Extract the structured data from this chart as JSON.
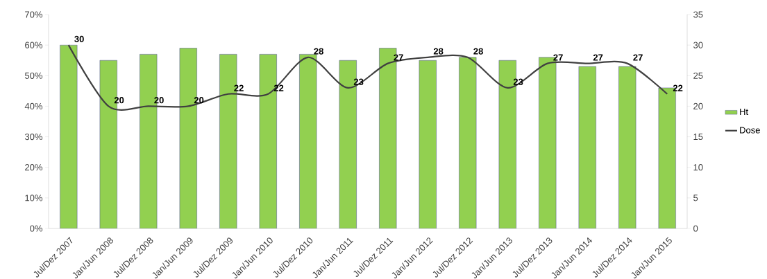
{
  "chart_data": {
    "type": "bar",
    "categories": [
      "Jul/Dez 2007",
      "Jan/Jun 2008",
      "Jul/Dez 2008",
      "Jan/Jun 2009",
      "Jul/Dez 2009",
      "Jan/Jun 2010",
      "Jul/Dez 2010",
      "Jan/Jun 2011",
      "Jul/Dez 2011",
      "Jan/Jun 2012",
      "Jul/Dez 2012",
      "Jan/Jun 2013",
      "Jul/Dez 2013",
      "Jan/Jun 2014",
      "Jul/Dez 2014",
      "Jan/Jun 2015"
    ],
    "series": [
      {
        "name": "Ht",
        "color": "#92d050",
        "values": [
          60,
          55,
          57,
          59,
          57,
          57,
          57,
          55,
          59,
          55,
          56,
          55,
          56,
          53,
          53,
          46
        ]
      },
      {
        "name": "Dose",
        "type": "line",
        "axis": "y2",
        "color": "#404040",
        "data_labels": true,
        "values": [
          30,
          20,
          20,
          20,
          22,
          22,
          28,
          23,
          27,
          28,
          28,
          23,
          27,
          27,
          27,
          22
        ]
      }
    ],
    "ylim": [
      0,
      70
    ],
    "yticks": [
      {
        "value": 0,
        "label": "0%"
      },
      {
        "value": 10,
        "label": "10%"
      },
      {
        "value": 20,
        "label": "20%"
      },
      {
        "value": 30,
        "label": "30%"
      },
      {
        "value": 40,
        "label": "40%"
      },
      {
        "value": 50,
        "label": "50%"
      },
      {
        "value": 60,
        "label": "60%"
      },
      {
        "value": 70,
        "label": "70%"
      }
    ],
    "y2lim": [
      0,
      35
    ],
    "y2ticks": [
      0,
      5,
      10,
      15,
      20,
      25,
      30,
      35
    ],
    "legend": "right",
    "grid": false,
    "marker": "none",
    "line_style": "solid"
  }
}
